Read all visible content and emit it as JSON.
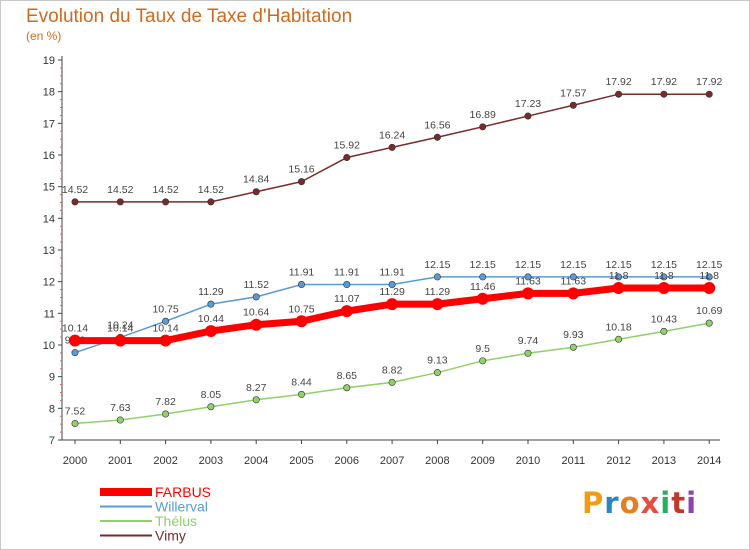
{
  "header": {
    "title": "Evolution du Taux de Taxe d'Habitation",
    "subtitle": "(en %)"
  },
  "logo": {
    "letters": [
      "P",
      "r",
      "o",
      "x",
      "i",
      "t",
      "i"
    ],
    "colors": [
      "#f39c12",
      "#2e86c1",
      "#e67e22",
      "#e74c3c",
      "#27ae60",
      "#c0392b",
      "#8e44ad"
    ]
  },
  "chart_data": {
    "type": "line",
    "title": "Evolution du Taux de Taxe d'Habitation",
    "subtitle": "(en %)",
    "x": [
      "2000",
      "2001",
      "2002",
      "2003",
      "2004",
      "2005",
      "2006",
      "2007",
      "2008",
      "2009",
      "2010",
      "2011",
      "2012",
      "2013",
      "2014"
    ],
    "ylim": [
      7,
      19
    ],
    "yticks": [
      "7",
      "8",
      "9",
      "10",
      "11",
      "12",
      "13",
      "14",
      "15",
      "16",
      "17",
      "18",
      "19"
    ],
    "grid": false,
    "legend_position": "bottom-left",
    "series": [
      {
        "name": "Vimy",
        "color": "#7b2a2a",
        "values": [
          14.52,
          14.52,
          14.52,
          14.52,
          14.84,
          15.16,
          15.92,
          16.24,
          16.56,
          16.89,
          17.23,
          17.57,
          17.92,
          17.92,
          17.92
        ],
        "labels": [
          "14.52",
          "14.52",
          "14.52",
          "14.52",
          "14.84",
          "15.16",
          "15.92",
          "16.24",
          "16.56",
          "16.89",
          "17.23",
          "17.57",
          "17.92",
          "17.92",
          "17.92"
        ]
      },
      {
        "name": "Willerval",
        "color": "#5b9bd5",
        "values": [
          9.76,
          10.24,
          10.75,
          11.29,
          11.52,
          11.91,
          11.91,
          11.91,
          12.15,
          12.15,
          12.15,
          12.15,
          12.15,
          12.15,
          12.15
        ],
        "labels": [
          "9.76",
          "10.24",
          "10.75",
          "11.29",
          "11.52",
          "11.91",
          "11.91",
          "11.91",
          "12.15",
          "12.15",
          "12.15",
          "12.15",
          "12.15",
          "12.15",
          "12.15"
        ]
      },
      {
        "name": "Thélus",
        "color": "#8fd16a",
        "values": [
          7.52,
          7.63,
          7.82,
          8.05,
          8.27,
          8.44,
          8.65,
          8.82,
          9.13,
          9.5,
          9.74,
          9.93,
          10.18,
          10.43,
          10.69
        ],
        "labels": [
          "7.52",
          "7.63",
          "7.82",
          "8.05",
          "8.27",
          "8.44",
          "8.65",
          "8.82",
          "9.13",
          "9.5",
          "9.74",
          "9.93",
          "10.18",
          "10.43",
          "10.69"
        ]
      },
      {
        "name": "FARBUS",
        "color": "#ff0000",
        "values": [
          10.14,
          10.14,
          10.14,
          10.44,
          10.64,
          10.75,
          11.07,
          11.29,
          11.29,
          11.46,
          11.63,
          11.63,
          11.8,
          11.8,
          11.8
        ],
        "labels": [
          "10.14",
          "10.14",
          "10.14",
          "10.44",
          "10.64",
          "10.75",
          "11.07",
          "11.29",
          "11.29",
          "11.46",
          "11.63",
          "11.63",
          "11.8",
          "11.8",
          "11.8"
        ]
      }
    ],
    "legend": [
      "FARBUS",
      "Willerval",
      "Thélus",
      "Vimy"
    ]
  }
}
